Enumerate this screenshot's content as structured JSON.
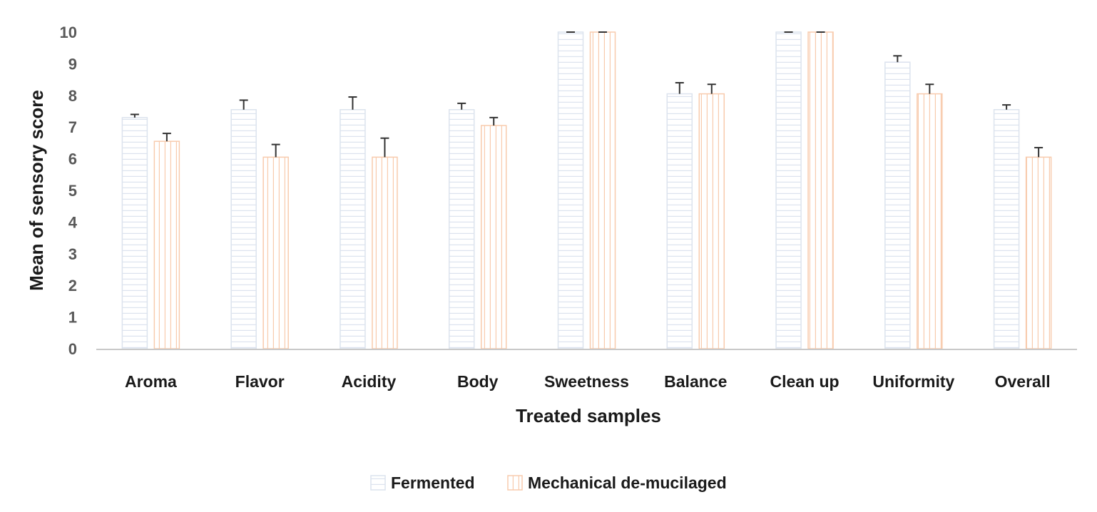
{
  "chart_data": {
    "type": "bar",
    "title": "",
    "xlabel": "Treated samples",
    "ylabel": "Mean of sensory score",
    "ylim": [
      0,
      10
    ],
    "yticks": [
      0,
      1,
      2,
      3,
      4,
      5,
      6,
      7,
      8,
      9,
      10
    ],
    "grid": false,
    "legend_position": "bottom",
    "categories": [
      "Aroma",
      "Flavor",
      "Acidity",
      "Body",
      "Sweetness",
      "Balance",
      "Clean up",
      "Uniformity",
      "Overall"
    ],
    "series": [
      {
        "name": "Fermented",
        "values": [
          7.3,
          7.55,
          7.55,
          7.55,
          10,
          8.05,
          10,
          9.05,
          7.55
        ],
        "errors": [
          0.1,
          0.3,
          0.4,
          0.2,
          0,
          0.35,
          0,
          0.2,
          0.15
        ],
        "color": "#dce3ee",
        "pattern": "horizontal-stripes"
      },
      {
        "name": "Mechanical de-mucilaged",
        "values": [
          6.55,
          6.05,
          6.05,
          7.05,
          10,
          8.05,
          10,
          8.05,
          6.05
        ],
        "errors": [
          0.25,
          0.4,
          0.6,
          0.25,
          0,
          0.3,
          0,
          0.3,
          0.3
        ],
        "color": "#f8cbad",
        "pattern": "vertical-stripes"
      }
    ]
  }
}
